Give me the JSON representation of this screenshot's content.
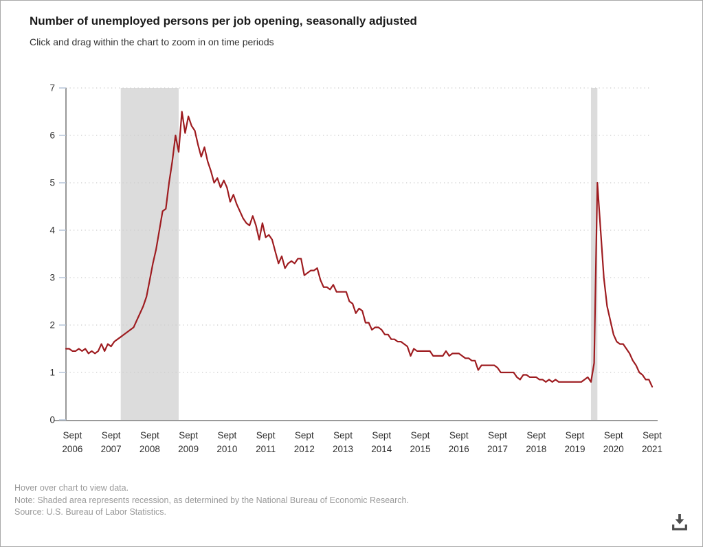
{
  "header": {
    "title": "Number of unemployed persons per job opening, seasonally adjusted",
    "subtitle": "Click and drag within the chart to zoom in on time periods"
  },
  "chart_data": {
    "type": "line",
    "title": "Number of unemployed persons per job opening, seasonally adjusted",
    "xlabel": "",
    "ylabel": "",
    "ylim": [
      0,
      7
    ],
    "y_ticks": [
      0,
      1,
      2,
      3,
      4,
      5,
      6,
      7
    ],
    "grid": "dotted horizontal gridlines at each integer",
    "legend_position": "none",
    "x_tick_labels": [
      "Sept 2006",
      "Sept 2007",
      "Sept 2008",
      "Sept 2009",
      "Sept 2010",
      "Sept 2011",
      "Sept 2012",
      "Sept 2013",
      "Sept 2014",
      "Sept 2015",
      "Sept 2016",
      "Sept 2017",
      "Sept 2018",
      "Sept 2019",
      "Sept 2020",
      "Sept 2021"
    ],
    "x_tick_indices": [
      2,
      14,
      26,
      38,
      50,
      62,
      74,
      86,
      98,
      110,
      122,
      134,
      146,
      158,
      170,
      182
    ],
    "band_color": "#dcdcdc",
    "recessions": [
      {
        "start": "Dec 2007",
        "end": "Jun 2009",
        "start_index": 17,
        "end_index": 35
      },
      {
        "start": "Feb 2020",
        "end": "Apr 2020",
        "start_index": 163,
        "end_index": 165
      }
    ],
    "series": [
      {
        "name": "Unemployed persons per job opening",
        "color": "#9e1c20",
        "frequency": "monthly",
        "start": "Jul 2006",
        "end": "Sep 2021",
        "values": [
          1.5,
          1.5,
          1.45,
          1.45,
          1.5,
          1.45,
          1.5,
          1.4,
          1.45,
          1.4,
          1.45,
          1.6,
          1.45,
          1.6,
          1.55,
          1.65,
          1.7,
          1.75,
          1.8,
          1.85,
          1.9,
          1.95,
          2.1,
          2.25,
          2.4,
          2.6,
          2.95,
          3.3,
          3.6,
          4.0,
          4.4,
          4.45,
          5.0,
          5.45,
          6.0,
          5.65,
          6.5,
          6.05,
          6.4,
          6.2,
          6.1,
          5.8,
          5.55,
          5.75,
          5.45,
          5.25,
          5.0,
          5.1,
          4.9,
          5.05,
          4.9,
          4.6,
          4.75,
          4.55,
          4.4,
          4.25,
          4.15,
          4.1,
          4.3,
          4.1,
          3.8,
          4.15,
          3.85,
          3.9,
          3.8,
          3.55,
          3.3,
          3.45,
          3.2,
          3.3,
          3.35,
          3.3,
          3.4,
          3.4,
          3.05,
          3.1,
          3.15,
          3.15,
          3.2,
          2.95,
          2.8,
          2.8,
          2.75,
          2.85,
          2.7,
          2.7,
          2.7,
          2.7,
          2.5,
          2.45,
          2.25,
          2.35,
          2.3,
          2.05,
          2.05,
          1.9,
          1.95,
          1.95,
          1.9,
          1.8,
          1.8,
          1.7,
          1.7,
          1.65,
          1.65,
          1.6,
          1.55,
          1.35,
          1.5,
          1.45,
          1.45,
          1.45,
          1.45,
          1.45,
          1.35,
          1.35,
          1.35,
          1.35,
          1.45,
          1.35,
          1.4,
          1.4,
          1.4,
          1.35,
          1.3,
          1.3,
          1.25,
          1.25,
          1.05,
          1.15,
          1.15,
          1.15,
          1.15,
          1.15,
          1.1,
          1.0,
          1.0,
          1.0,
          1.0,
          1.0,
          0.9,
          0.85,
          0.95,
          0.95,
          0.9,
          0.9,
          0.9,
          0.85,
          0.85,
          0.8,
          0.85,
          0.8,
          0.85,
          0.8,
          0.8,
          0.8,
          0.8,
          0.8,
          0.8,
          0.8,
          0.8,
          0.85,
          0.9,
          0.8,
          1.2,
          5.0,
          4.0,
          3.0,
          2.4,
          2.1,
          1.8,
          1.65,
          1.6,
          1.6,
          1.5,
          1.4,
          1.25,
          1.15,
          1.0,
          0.95,
          0.85,
          0.85,
          0.7
        ]
      }
    ]
  },
  "footer": {
    "hover_note": "Hover over chart to view data.",
    "recession_note": "Note: Shaded area represents recession, as determined by the National Bureau of Economic Research.",
    "source": "Source: U.S. Bureau of Labor Statistics."
  },
  "icons": {
    "download": "download-icon"
  },
  "colors": {
    "line": "#9e1c20",
    "recession_band": "#dcdcdc",
    "gridline": "#cccccc",
    "y_axis": "#777777",
    "x_axis": "#9a9a9a",
    "y_tick": "#b6c4d8",
    "axis_text": "#2e2e2e",
    "title_text": "#1a1a1a",
    "subtitle_text": "#333333",
    "footer_text": "#9a9a9a",
    "download_icon": "#4d4d4d",
    "page_border": "#a8a8a8"
  }
}
